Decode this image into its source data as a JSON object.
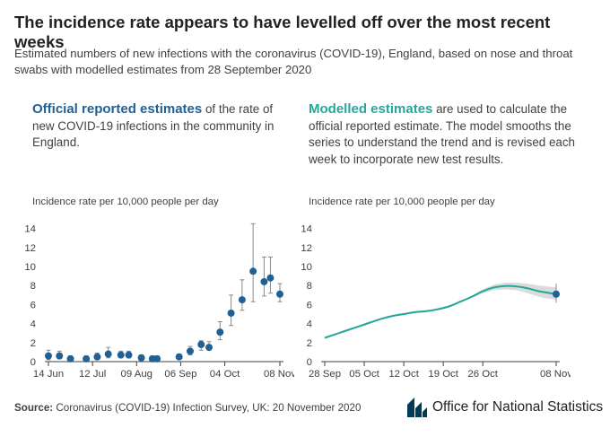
{
  "title": "The incidence rate appears to have levelled off over the most recent weeks",
  "subtitle": "Estimated numbers of new infections with the coronavirus (COVID-19), England, based on nose and throat swabs with modelled estimates from 28 September 2020",
  "left_panel": {
    "highlight": "Official reported estimates",
    "text": " of the rate of new COVID-19 infections in the community in England."
  },
  "right_panel": {
    "highlight": "Modelled estimates",
    "text": " are used to calculate the official reported estimate. The model smooths the series to understand the trend and is revised each week to incorporate new test results."
  },
  "source": {
    "label": "Source:",
    "text": " Coronavirus (COVID-19) Infection Survey, UK: 20 November 2020"
  },
  "logo": {
    "text": "Office for National Statistics",
    "icon": "ons-logo-icon"
  },
  "colors": {
    "official": "#206095",
    "modelled": "#24a79b",
    "band": "#d0d2d3",
    "errorbar": "#8a8a8a"
  },
  "chart_data": [
    {
      "type": "scatter",
      "ylabel": "Incidence rate per 10,000 people per day",
      "ylim": [
        0,
        15
      ],
      "yticks": [
        0,
        2,
        4,
        6,
        8,
        10,
        12,
        14
      ],
      "xlim": [
        "2020-06-14",
        "2020-11-08"
      ],
      "xticks": [
        "14 Jun",
        "12 Jul",
        "09 Aug",
        "06 Sep",
        "04 Oct",
        "08 Nov"
      ],
      "xtick_dates": [
        "2020-06-14",
        "2020-07-12",
        "2020-08-09",
        "2020-09-06",
        "2020-10-04",
        "2020-11-08"
      ],
      "grid": false,
      "points": [
        {
          "x": "2020-06-14",
          "y": 0.6,
          "lo": 0.2,
          "hi": 1.2
        },
        {
          "x": "2020-06-21",
          "y": 0.6,
          "lo": 0.3,
          "hi": 1.1
        },
        {
          "x": "2020-06-28",
          "y": 0.3,
          "lo": 0.1,
          "hi": 0.6
        },
        {
          "x": "2020-07-08",
          "y": 0.3,
          "lo": 0.1,
          "hi": 0.6
        },
        {
          "x": "2020-07-15",
          "y": 0.5,
          "lo": 0.2,
          "hi": 0.9
        },
        {
          "x": "2020-07-22",
          "y": 0.8,
          "lo": 0.4,
          "hi": 1.5
        },
        {
          "x": "2020-07-30",
          "y": 0.7,
          "lo": 0.4,
          "hi": 1.1
        },
        {
          "x": "2020-08-04",
          "y": 0.7,
          "lo": 0.4,
          "hi": 1.1
        },
        {
          "x": "2020-08-12",
          "y": 0.4,
          "lo": 0.2,
          "hi": 0.7
        },
        {
          "x": "2020-08-19",
          "y": 0.3,
          "lo": 0.1,
          "hi": 0.6
        },
        {
          "x": "2020-08-22",
          "y": 0.3,
          "lo": 0.1,
          "hi": 0.6
        },
        {
          "x": "2020-09-05",
          "y": 0.5,
          "lo": 0.3,
          "hi": 0.8
        },
        {
          "x": "2020-09-12",
          "y": 1.1,
          "lo": 0.7,
          "hi": 1.6
        },
        {
          "x": "2020-09-19",
          "y": 1.8,
          "lo": 1.2,
          "hi": 2.2
        },
        {
          "x": "2020-09-24",
          "y": 1.5,
          "lo": 1.2,
          "hi": 2.1
        },
        {
          "x": "2020-10-01",
          "y": 3.1,
          "lo": 2.3,
          "hi": 4.2
        },
        {
          "x": "2020-10-08",
          "y": 5.1,
          "lo": 3.8,
          "hi": 7.0
        },
        {
          "x": "2020-10-15",
          "y": 6.5,
          "lo": 5.4,
          "hi": 8.6
        },
        {
          "x": "2020-10-22",
          "y": 9.5,
          "lo": 6.3,
          "hi": 14.5
        },
        {
          "x": "2020-10-29",
          "y": 8.4,
          "lo": 6.9,
          "hi": 11.0
        },
        {
          "x": "2020-11-02",
          "y": 8.8,
          "lo": 7.2,
          "hi": 11.0
        },
        {
          "x": "2020-11-08",
          "y": 7.1,
          "lo": 6.3,
          "hi": 8.2
        }
      ]
    },
    {
      "type": "line",
      "ylabel": "Incidence rate per 10,000 people per day",
      "ylim": [
        0,
        15
      ],
      "yticks": [
        0,
        2,
        4,
        6,
        8,
        10,
        12,
        14
      ],
      "xlim": [
        "2020-09-28",
        "2020-11-08"
      ],
      "xticks": [
        "28 Sep",
        "05 Oct",
        "12 Oct",
        "19 Oct",
        "26 Oct",
        "08 Nov"
      ],
      "xtick_dates": [
        "2020-09-28",
        "2020-10-05",
        "2020-10-12",
        "2020-10-19",
        "2020-10-26",
        "2020-11-08"
      ],
      "grid": false,
      "series": [
        {
          "x": [
            "2020-09-28",
            "2020-09-30",
            "2020-10-02",
            "2020-10-04",
            "2020-10-06",
            "2020-10-08",
            "2020-10-10",
            "2020-10-12",
            "2020-10-14",
            "2020-10-16",
            "2020-10-18",
            "2020-10-20",
            "2020-10-22",
            "2020-10-24",
            "2020-10-26",
            "2020-10-28",
            "2020-10-30",
            "2020-11-01",
            "2020-11-03",
            "2020-11-05",
            "2020-11-08"
          ],
          "y": [
            2.5,
            2.9,
            3.3,
            3.7,
            4.1,
            4.5,
            4.8,
            5.0,
            5.2,
            5.3,
            5.5,
            5.8,
            6.3,
            6.8,
            7.4,
            7.8,
            7.95,
            7.9,
            7.7,
            7.4,
            7.1
          ],
          "lo": [
            2.4,
            2.8,
            3.2,
            3.6,
            4.0,
            4.4,
            4.7,
            4.9,
            5.1,
            5.2,
            5.4,
            5.7,
            6.2,
            6.7,
            7.2,
            7.5,
            7.6,
            7.5,
            7.2,
            6.8,
            6.5
          ],
          "hi": [
            2.6,
            3.0,
            3.4,
            3.8,
            4.2,
            4.6,
            4.9,
            5.1,
            5.3,
            5.4,
            5.6,
            5.9,
            6.4,
            6.9,
            7.6,
            8.1,
            8.3,
            8.3,
            8.2,
            8.0,
            7.8
          ]
        }
      ]
    }
  ]
}
